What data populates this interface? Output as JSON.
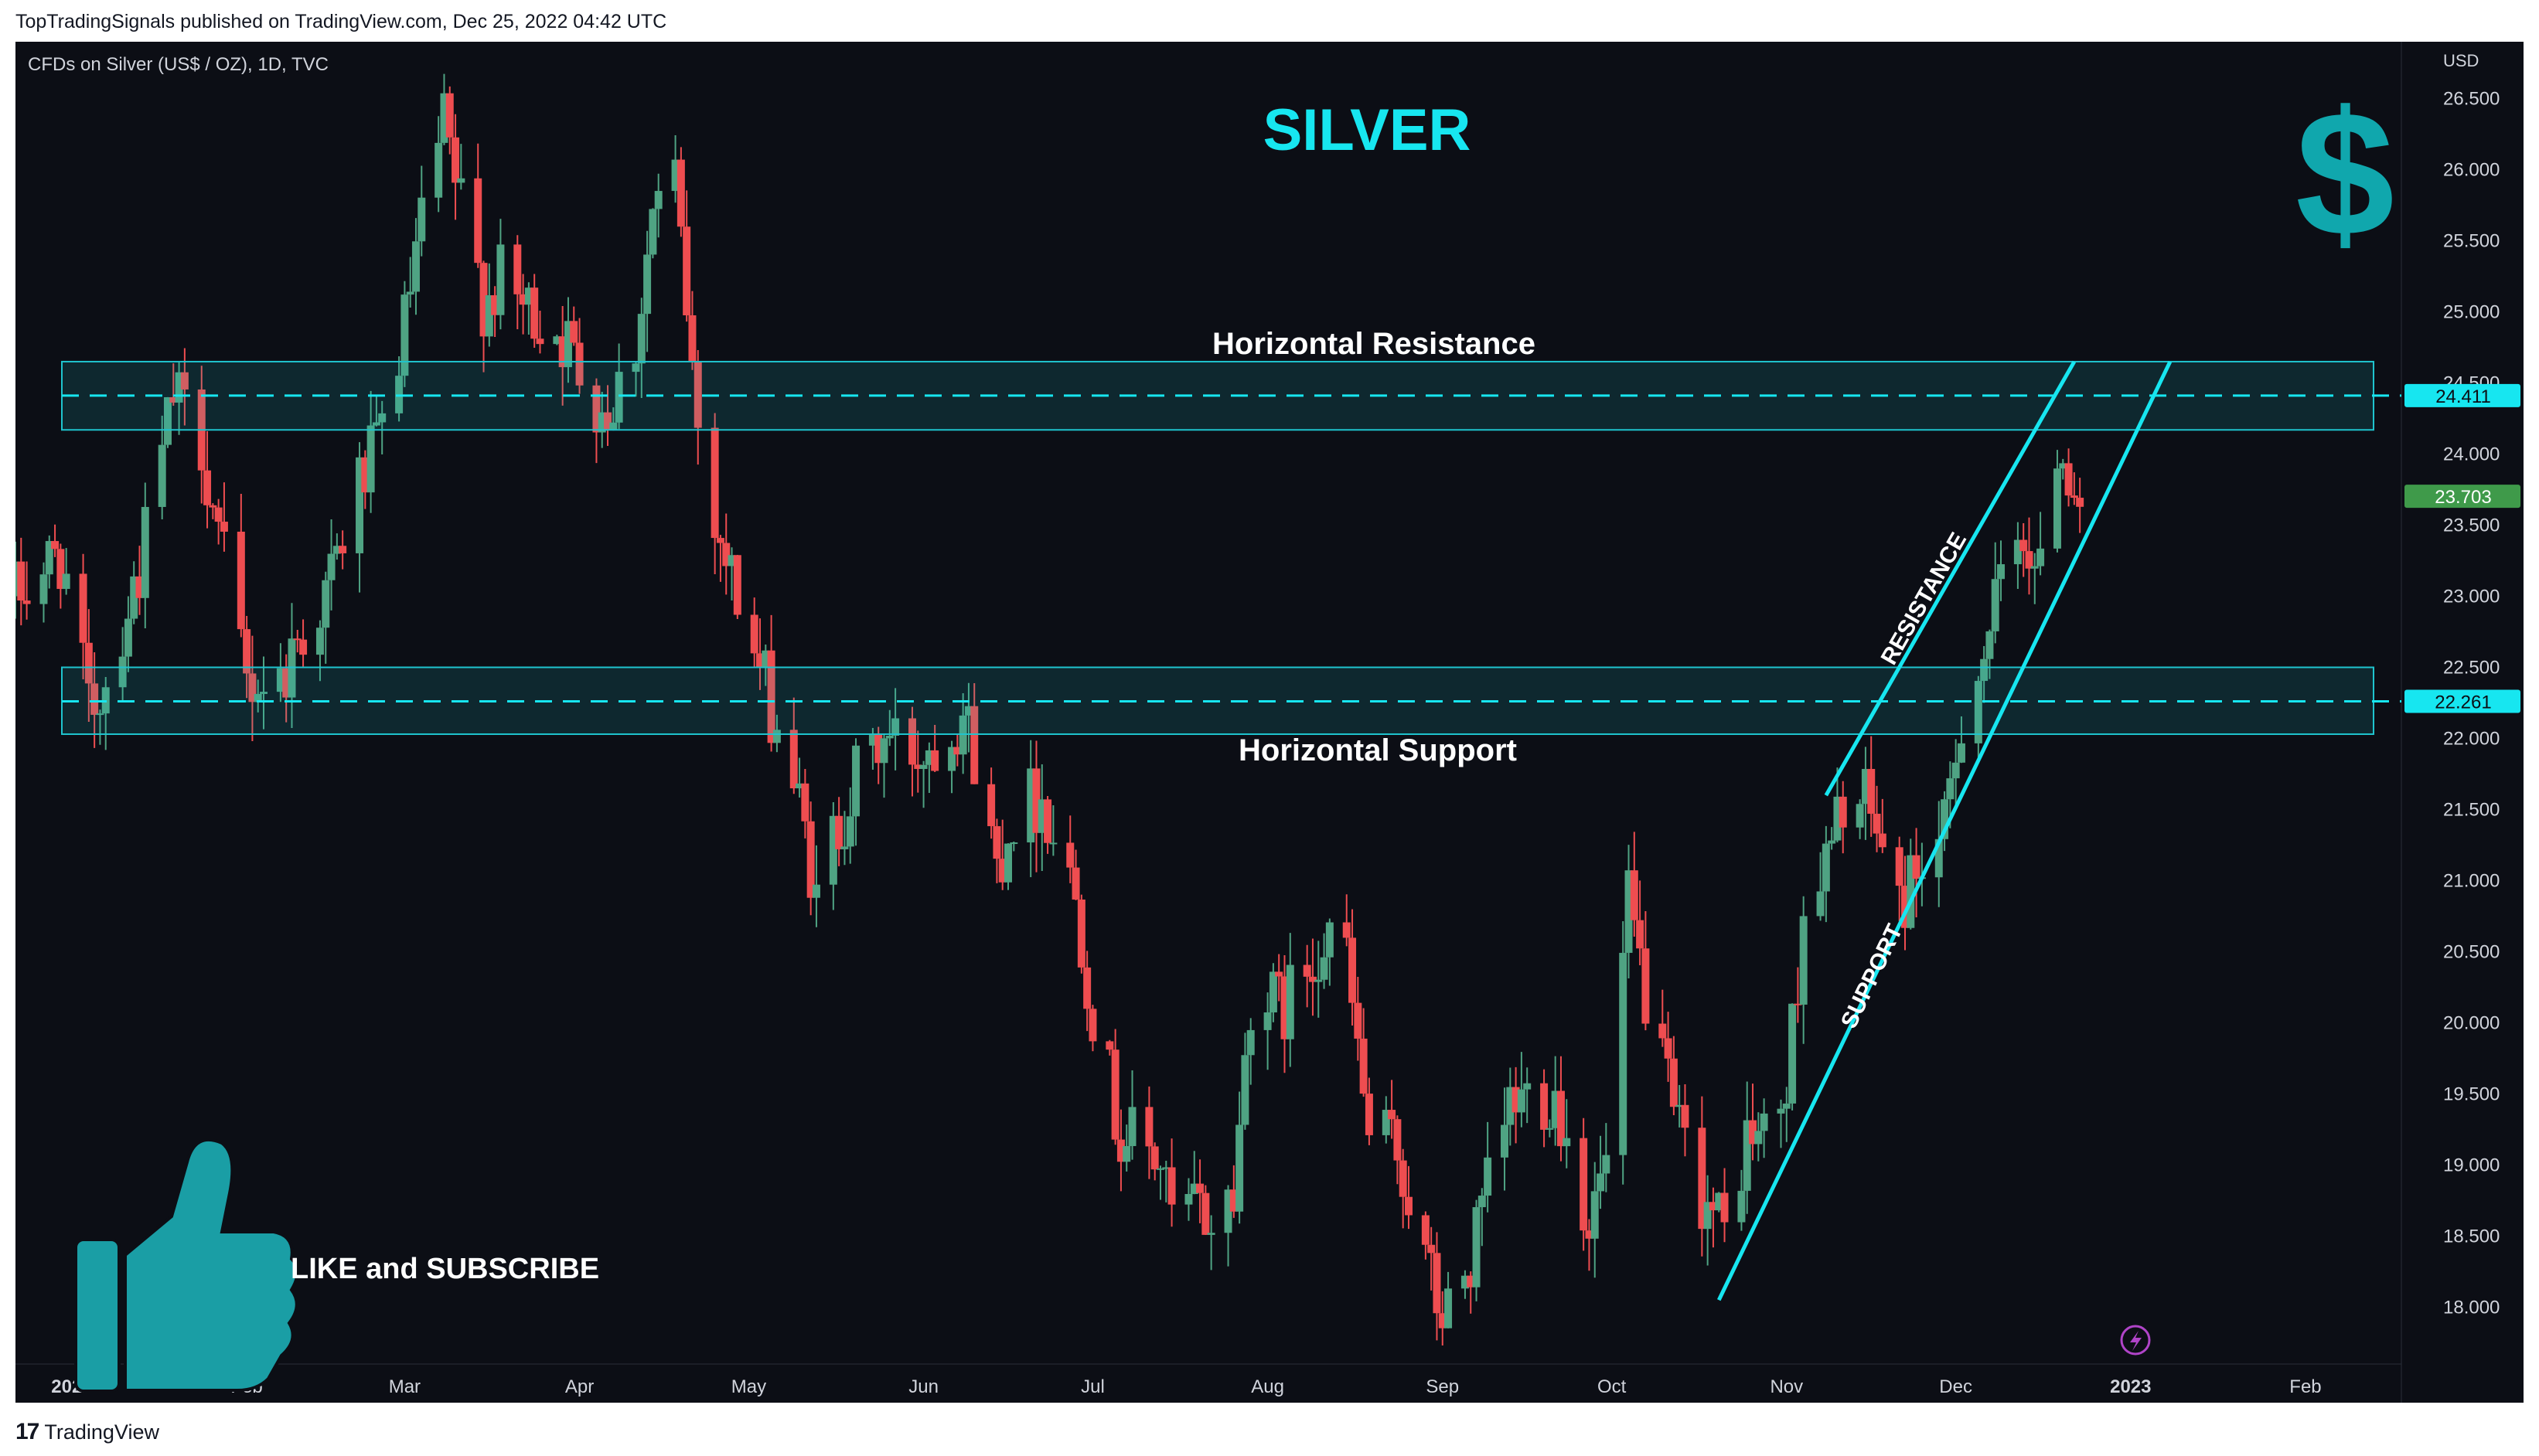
{
  "header": {
    "published": "TopTradingSignals published on TradingView.com, Dec 25, 2022 04:42 UTC"
  },
  "footer": {
    "brand": "TradingView",
    "logo_icon": "tradingview-logo-icon"
  },
  "chart_data": {
    "type": "candlestick",
    "symbol": "CFDs on Silver (US$ / OZ), 1D, TVC",
    "title": "SILVER",
    "currency": "USD",
    "ylim": [
      17.6,
      26.9
    ],
    "y_ticks": [
      "18.000",
      "18.500",
      "19.000",
      "19.500",
      "20.000",
      "20.500",
      "21.000",
      "21.500",
      "22.000",
      "22.500",
      "23.000",
      "23.500",
      "24.000",
      "24.500",
      "25.000",
      "25.500",
      "26.000",
      "26.500"
    ],
    "x_ticks": [
      {
        "label": "2022",
        "date": "2022-01-01"
      },
      {
        "label": "Feb",
        "date": "2022-02-01"
      },
      {
        "label": "Mar",
        "date": "2022-03-01"
      },
      {
        "label": "Apr",
        "date": "2022-04-01"
      },
      {
        "label": "May",
        "date": "2022-05-01"
      },
      {
        "label": "Jun",
        "date": "2022-06-01"
      },
      {
        "label": "Jul",
        "date": "2022-07-01"
      },
      {
        "label": "Aug",
        "date": "2022-08-01"
      },
      {
        "label": "Sep",
        "date": "2022-09-01"
      },
      {
        "label": "Oct",
        "date": "2022-10-01"
      },
      {
        "label": "Nov",
        "date": "2022-11-01"
      },
      {
        "label": "Dec",
        "date": "2022-12-01"
      },
      {
        "label": "2023",
        "date": "2023-01-01"
      },
      {
        "label": "Feb",
        "date": "2023-02-01"
      }
    ],
    "x_range": [
      "2021-12-22",
      "2023-02-18"
    ],
    "price_path": [
      [
        "2021-12-22",
        23.0
      ],
      [
        "2021-12-30",
        23.3
      ],
      [
        "2022-01-04",
        22.2
      ],
      [
        "2022-01-07",
        22.4
      ],
      [
        "2022-01-13",
        23.2
      ],
      [
        "2022-01-19",
        24.4
      ],
      [
        "2022-01-24",
        24.1
      ],
      [
        "2022-01-27",
        23.4
      ],
      [
        "2022-02-01",
        22.4
      ],
      [
        "2022-02-07",
        22.4
      ],
      [
        "2022-02-10",
        22.7
      ],
      [
        "2022-02-15",
        23.0
      ],
      [
        "2022-02-21",
        23.8
      ],
      [
        "2022-02-24",
        24.0
      ],
      [
        "2022-03-01",
        24.9
      ],
      [
        "2022-03-04",
        25.6
      ],
      [
        "2022-03-08",
        26.3
      ],
      [
        "2022-03-10",
        25.9
      ],
      [
        "2022-03-15",
        25.1
      ],
      [
        "2022-03-18",
        25.2
      ],
      [
        "2022-03-23",
        25.0
      ],
      [
        "2022-03-28",
        24.9
      ],
      [
        "2022-04-01",
        24.6
      ],
      [
        "2022-04-06",
        24.3
      ],
      [
        "2022-04-11",
        24.8
      ],
      [
        "2022-04-14",
        25.7
      ],
      [
        "2022-04-18",
        25.9
      ],
      [
        "2022-04-22",
        24.2
      ],
      [
        "2022-04-26",
        23.4
      ],
      [
        "2022-05-02",
        22.6
      ],
      [
        "2022-05-06",
        22.1
      ],
      [
        "2022-05-09",
        21.7
      ],
      [
        "2022-05-12",
        21.1
      ],
      [
        "2022-05-13",
        20.8
      ],
      [
        "2022-05-16",
        21.3
      ],
      [
        "2022-05-20",
        21.7
      ],
      [
        "2022-05-25",
        22.0
      ],
      [
        "2022-05-31",
        21.9
      ],
      [
        "2022-06-03",
        22.0
      ],
      [
        "2022-06-08",
        22.2
      ],
      [
        "2022-06-10",
        21.9
      ],
      [
        "2022-06-14",
        21.1
      ],
      [
        "2022-06-17",
        21.5
      ],
      [
        "2022-06-22",
        21.6
      ],
      [
        "2022-06-28",
        20.9
      ],
      [
        "2022-07-01",
        20.1
      ],
      [
        "2022-07-06",
        19.2
      ],
      [
        "2022-07-08",
        19.2
      ],
      [
        "2022-07-13",
        19.0
      ],
      [
        "2022-07-15",
        18.6
      ],
      [
        "2022-07-19",
        18.7
      ],
      [
        "2022-07-22",
        18.6
      ],
      [
        "2022-07-26",
        18.8
      ],
      [
        "2022-07-29",
        20.2
      ],
      [
        "2022-08-04",
        20.1
      ],
      [
        "2022-08-08",
        20.4
      ],
      [
        "2022-08-12",
        20.7
      ],
      [
        "2022-08-15",
        20.4
      ],
      [
        "2022-08-19",
        19.2
      ],
      [
        "2022-08-24",
        19.1
      ],
      [
        "2022-08-29",
        18.3
      ],
      [
        "2022-09-01",
        17.9
      ],
      [
        "2022-09-06",
        18.3
      ],
      [
        "2022-09-09",
        18.8
      ],
      [
        "2022-09-13",
        19.4
      ],
      [
        "2022-09-16",
        19.5
      ],
      [
        "2022-09-21",
        19.5
      ],
      [
        "2022-09-27",
        18.6
      ],
      [
        "2022-09-30",
        19.0
      ],
      [
        "2022-10-04",
        20.8
      ],
      [
        "2022-10-07",
        20.2
      ],
      [
        "2022-10-12",
        19.3
      ],
      [
        "2022-10-17",
        18.8
      ],
      [
        "2022-10-21",
        18.5
      ],
      [
        "2022-10-25",
        19.2
      ],
      [
        "2022-10-28",
        19.2
      ],
      [
        "2022-11-01",
        19.5
      ],
      [
        "2022-11-04",
        20.8
      ],
      [
        "2022-11-09",
        21.2
      ],
      [
        "2022-11-11",
        21.6
      ],
      [
        "2022-11-16",
        21.5
      ],
      [
        "2022-11-21",
        20.8
      ],
      [
        "2022-11-24",
        21.1
      ],
      [
        "2022-11-29",
        21.3
      ],
      [
        "2022-12-02",
        22.2
      ],
      [
        "2022-12-06",
        22.6
      ],
      [
        "2022-12-08",
        22.9
      ],
      [
        "2022-12-13",
        23.5
      ],
      [
        "2022-12-16",
        23.1
      ],
      [
        "2022-12-19",
        24.1
      ],
      [
        "2022-12-23",
        23.7
      ]
    ],
    "last_price": "23.703",
    "price_labels": [
      {
        "value": 24.411,
        "label": "24.411"
      },
      {
        "value": 22.261,
        "label": "22.261"
      }
    ],
    "annotations": {
      "resistance_zone": {
        "label": "Horizontal Resistance",
        "range": [
          24.17,
          24.65
        ],
        "dashed_level": 24.411
      },
      "support_zone": {
        "label": "Horizontal Support",
        "range": [
          22.03,
          22.5
        ],
        "dashed_level": 22.261
      },
      "channel_resistance": {
        "label": "RESISTANCE",
        "from": [
          "2022-11-08",
          21.6
        ],
        "to": [
          "2022-12-22",
          24.65
        ]
      },
      "channel_support": {
        "label": "SUPPORT",
        "from": [
          "2022-10-20",
          18.05
        ],
        "to": [
          "2023-01-08",
          24.65
        ]
      }
    },
    "overlay": {
      "like_text": "LIKE and SUBSCRIBE",
      "icons": [
        "thumbs-up-icon",
        "dollar-sign-icon",
        "lightning-icon"
      ]
    },
    "colors": {
      "up": "#4fa383",
      "down": "#ee4d50",
      "accent": "#17e6f0",
      "zone": "#1fc4ce",
      "last": "#3f9a4a",
      "dollar": "#10a7ad",
      "thumb": "#1a9ea5"
    }
  }
}
